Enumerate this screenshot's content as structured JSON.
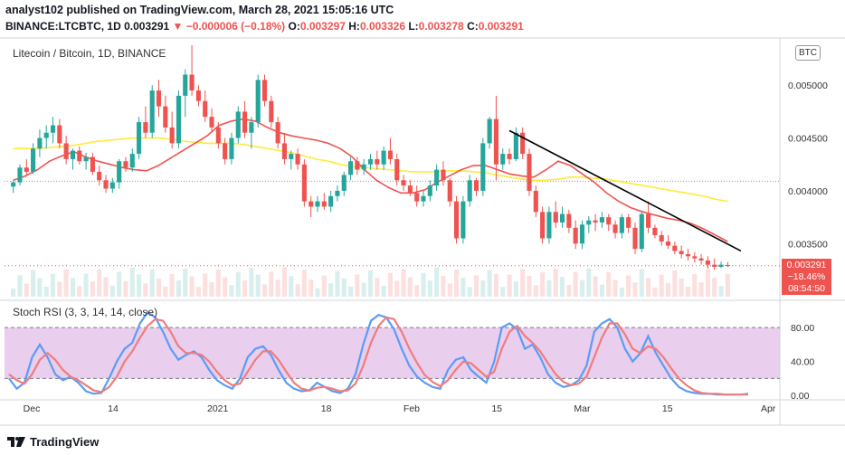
{
  "header": {
    "line1": "analyst102 published on TradingView.com, March 28, 2021 15:05:16 UTC",
    "symbol": "BINANCE:LTCBTC, 1D",
    "price": "0.003291",
    "change": "▼ −0.000006 (−0.18%)",
    "o_label": "O:",
    "o_value": "0.003297",
    "h_label": "H:",
    "h_value": "0.003326",
    "l_label": "L:",
    "l_value": "0.003278",
    "c_label": "C:",
    "c_value": "0.003291"
  },
  "main_pane": {
    "label": "Litecoin / Bitcoin, 1D, BINANCE",
    "currency_tag": "BTC",
    "price_tag": {
      "price": "0.003291",
      "pct": "−18.46%",
      "countdown": "08:54:50"
    }
  },
  "rsi_pane": {
    "label": "Stoch RSI (3, 3, 14, 14, close)"
  },
  "footer": {
    "brand": "TradingView"
  },
  "colors": {
    "up": "#26a69a",
    "down": "#ef5350",
    "ma_fast": "#ef5350",
    "ma_slow": "#ffeb3b",
    "trendline": "#000000",
    "stoch_k": "#5b9cf6",
    "stoch_d": "#ef7d7d",
    "rsi_band": "#e1bee7"
  },
  "icons": {
    "footer_logo": "tradingview-logo-icon"
  },
  "chart_data": [
    {
      "type": "candlestick",
      "title": "Litecoin / Bitcoin, 1D, BINANCE",
      "y_ticks": [
        "0.005000",
        "0.004500",
        "0.004000",
        "0.003500"
      ],
      "x_ticks": [
        "Dec",
        "14",
        "2021",
        "18",
        "Feb",
        "15",
        "Mar",
        "15",
        "Apr"
      ],
      "ylim": [
        0.00298,
        0.00543
      ],
      "last_price": 0.003291,
      "candles": [
        [
          0.00404,
          0.0041,
          0.00398,
          0.00408
        ],
        [
          0.00408,
          0.00425,
          0.00405,
          0.00422
        ],
        [
          0.00422,
          0.0043,
          0.00415,
          0.00418
        ],
        [
          0.00418,
          0.00445,
          0.00416,
          0.0044
        ],
        [
          0.0044,
          0.00458,
          0.00432,
          0.0045
        ],
        [
          0.0045,
          0.00462,
          0.0044,
          0.00455
        ],
        [
          0.00455,
          0.0047,
          0.00445,
          0.00462
        ],
        [
          0.00462,
          0.00468,
          0.0044,
          0.00445
        ],
        [
          0.00445,
          0.00452,
          0.00425,
          0.0043
        ],
        [
          0.0043,
          0.0044,
          0.0042,
          0.00438
        ],
        [
          0.00438,
          0.00442,
          0.00425,
          0.00428
        ],
        [
          0.00428,
          0.00436,
          0.0042,
          0.00432
        ],
        [
          0.00432,
          0.00436,
          0.00415,
          0.00418
        ],
        [
          0.00418,
          0.00424,
          0.00405,
          0.0041
        ],
        [
          0.0041,
          0.00415,
          0.00398,
          0.00402
        ],
        [
          0.00402,
          0.00412,
          0.00398,
          0.00408
        ],
        [
          0.00408,
          0.0043,
          0.00402,
          0.00428
        ],
        [
          0.00428,
          0.00432,
          0.00418,
          0.00422
        ],
        [
          0.00422,
          0.0044,
          0.00418,
          0.00435
        ],
        [
          0.00435,
          0.0047,
          0.0043,
          0.00465
        ],
        [
          0.00465,
          0.0048,
          0.0045,
          0.00455
        ],
        [
          0.00455,
          0.005,
          0.0045,
          0.00495
        ],
        [
          0.00495,
          0.00505,
          0.0047,
          0.0048
        ],
        [
          0.0048,
          0.0049,
          0.00455,
          0.0046
        ],
        [
          0.0046,
          0.00475,
          0.0044,
          0.00445
        ],
        [
          0.00445,
          0.00495,
          0.0044,
          0.0049
        ],
        [
          0.0049,
          0.00515,
          0.0047,
          0.0051
        ],
        [
          0.0051,
          0.00538,
          0.0049,
          0.00495
        ],
        [
          0.00495,
          0.005,
          0.0048,
          0.00485
        ],
        [
          0.00485,
          0.00495,
          0.00465,
          0.0047
        ],
        [
          0.0047,
          0.00478,
          0.00455,
          0.0046
        ],
        [
          0.0046,
          0.00465,
          0.0044,
          0.00445
        ],
        [
          0.00445,
          0.0045,
          0.00425,
          0.0043
        ],
        [
          0.0043,
          0.00455,
          0.00425,
          0.0045
        ],
        [
          0.0045,
          0.0048,
          0.00445,
          0.00475
        ],
        [
          0.00475,
          0.00485,
          0.0045,
          0.00455
        ],
        [
          0.00455,
          0.0047,
          0.0044,
          0.00465
        ],
        [
          0.00465,
          0.0051,
          0.0046,
          0.00505
        ],
        [
          0.00505,
          0.0051,
          0.0048,
          0.00485
        ],
        [
          0.00485,
          0.0049,
          0.0046,
          0.00465
        ],
        [
          0.00465,
          0.0047,
          0.0044,
          0.00445
        ],
        [
          0.00445,
          0.00455,
          0.00425,
          0.0043
        ],
        [
          0.0043,
          0.00438,
          0.0042,
          0.00435
        ],
        [
          0.00435,
          0.0044,
          0.0042,
          0.00425
        ],
        [
          0.00425,
          0.0043,
          0.00385,
          0.0039
        ],
        [
          0.0039,
          0.00395,
          0.00375,
          0.00385
        ],
        [
          0.00385,
          0.00395,
          0.0038,
          0.0039
        ],
        [
          0.0039,
          0.00398,
          0.00382,
          0.00385
        ],
        [
          0.00385,
          0.004,
          0.0038,
          0.00395
        ],
        [
          0.00395,
          0.00405,
          0.0039,
          0.004
        ],
        [
          0.004,
          0.00418,
          0.00395,
          0.00415
        ],
        [
          0.00415,
          0.00432,
          0.0041,
          0.00428
        ],
        [
          0.00428,
          0.00432,
          0.00415,
          0.0042
        ],
        [
          0.0042,
          0.0043,
          0.00415,
          0.00425
        ],
        [
          0.00425,
          0.00435,
          0.0042,
          0.0043
        ],
        [
          0.0043,
          0.00438,
          0.0042,
          0.00425
        ],
        [
          0.00425,
          0.00442,
          0.0042,
          0.00438
        ],
        [
          0.00438,
          0.0045,
          0.00425,
          0.0043
        ],
        [
          0.0043,
          0.00435,
          0.00405,
          0.0041
        ],
        [
          0.0041,
          0.00415,
          0.004,
          0.00405
        ],
        [
          0.00405,
          0.0041,
          0.00395,
          0.00398
        ],
        [
          0.00398,
          0.00405,
          0.00385,
          0.0039
        ],
        [
          0.0039,
          0.004,
          0.00385,
          0.00395
        ],
        [
          0.00395,
          0.0041,
          0.0039,
          0.00405
        ],
        [
          0.00405,
          0.00425,
          0.004,
          0.0042
        ],
        [
          0.0042,
          0.00428,
          0.00405,
          0.0041
        ],
        [
          0.0041,
          0.00412,
          0.00385,
          0.0039
        ],
        [
          0.0039,
          0.00395,
          0.0035,
          0.00355
        ],
        [
          0.00355,
          0.00395,
          0.0035,
          0.0039
        ],
        [
          0.0039,
          0.00415,
          0.00385,
          0.0041
        ],
        [
          0.0041,
          0.00412,
          0.00395,
          0.004
        ],
        [
          0.004,
          0.0045,
          0.00395,
          0.00445
        ],
        [
          0.00445,
          0.0047,
          0.0044,
          0.00468
        ],
        [
          0.00468,
          0.0049,
          0.0041,
          0.00425
        ],
        [
          0.00425,
          0.0044,
          0.0042,
          0.00435
        ],
        [
          0.00435,
          0.0044,
          0.00425,
          0.0043
        ],
        [
          0.0043,
          0.0046,
          0.00428,
          0.00455
        ],
        [
          0.00455,
          0.0046,
          0.0043,
          0.00435
        ],
        [
          0.00435,
          0.0044,
          0.00395,
          0.004
        ],
        [
          0.004,
          0.00405,
          0.00375,
          0.0038
        ],
        [
          0.0038,
          0.00385,
          0.0035,
          0.00355
        ],
        [
          0.00355,
          0.00385,
          0.0035,
          0.0038
        ],
        [
          0.0038,
          0.0039,
          0.00365,
          0.0037
        ],
        [
          0.0037,
          0.00385,
          0.00365,
          0.00378
        ],
        [
          0.00378,
          0.00382,
          0.0036,
          0.00365
        ],
        [
          0.00365,
          0.00372,
          0.00345,
          0.0035
        ],
        [
          0.0035,
          0.00372,
          0.00345,
          0.00368
        ],
        [
          0.00368,
          0.00376,
          0.0036,
          0.00372
        ],
        [
          0.00372,
          0.00378,
          0.00362,
          0.0037
        ],
        [
          0.0037,
          0.0038,
          0.00365,
          0.00375
        ],
        [
          0.00375,
          0.00378,
          0.00362,
          0.00368
        ],
        [
          0.00368,
          0.00372,
          0.00355,
          0.0036
        ],
        [
          0.0036,
          0.00378,
          0.00355,
          0.00375
        ],
        [
          0.00375,
          0.00378,
          0.0036,
          0.00365
        ],
        [
          0.00365,
          0.0037,
          0.0034,
          0.00345
        ],
        [
          0.00345,
          0.0038,
          0.00342,
          0.00378
        ],
        [
          0.00378,
          0.0039,
          0.0036,
          0.00365
        ],
        [
          0.00365,
          0.00368,
          0.00355,
          0.00358
        ],
        [
          0.00358,
          0.00362,
          0.00348,
          0.00352
        ],
        [
          0.00352,
          0.00358,
          0.00345,
          0.00348
        ],
        [
          0.00348,
          0.00352,
          0.0034,
          0.00343
        ],
        [
          0.00343,
          0.00348,
          0.00336,
          0.0034
        ],
        [
          0.0034,
          0.00345,
          0.00334,
          0.00338
        ],
        [
          0.00338,
          0.00342,
          0.00332,
          0.00336
        ],
        [
          0.00336,
          0.0034,
          0.0033,
          0.00334
        ],
        [
          0.00334,
          0.00338,
          0.00326,
          0.0033
        ],
        [
          0.0033,
          0.00336,
          0.00325,
          0.00328
        ],
        [
          0.00328,
          0.00333,
          0.00327,
          0.0033
        ],
        [
          0.003297,
          0.003326,
          0.003278,
          0.003291
        ]
      ],
      "moving_averages": [
        {
          "name": "fast",
          "color": "#ef5350",
          "values": [
            0.0041,
            0.00414,
            0.0042,
            0.00428,
            0.00433,
            0.00437,
            0.00432,
            0.00428,
            0.00425,
            0.00422,
            0.0042,
            0.00419,
            0.00424,
            0.00431,
            0.00438,
            0.00445,
            0.00452,
            0.00462,
            0.00466,
            0.00468,
            0.00466,
            0.0046,
            0.00455,
            0.00452,
            0.0045,
            0.00448,
            0.00445,
            0.0044,
            0.00432,
            0.0042,
            0.0041,
            0.00403,
            0.00398,
            0.00398,
            0.00401,
            0.00408,
            0.00414,
            0.0042,
            0.00424,
            0.00424,
            0.0042,
            0.00416,
            0.00414,
            0.00413,
            0.0042,
            0.00428,
            0.00424,
            0.00416,
            0.00408,
            0.00398,
            0.0039,
            0.00384,
            0.0038,
            0.00377,
            0.00374,
            0.00372,
            0.00369,
            0.00364,
            0.00358,
            0.00352
          ]
        }
      ],
      "moving_average_slow": {
        "color": "#ffeb3b",
        "values": [
          0.0044,
          0.0044,
          0.0044,
          0.00441,
          0.00442,
          0.00443,
          0.00445,
          0.00447,
          0.00448,
          0.00449,
          0.0045,
          0.0045,
          0.0045,
          0.00449,
          0.00447,
          0.00446,
          0.00445,
          0.00445,
          0.00445,
          0.00444,
          0.00442,
          0.0044,
          0.00438,
          0.00436,
          0.00433,
          0.0043,
          0.00428,
          0.00425,
          0.00423,
          0.00422,
          0.00421,
          0.0042,
          0.00419,
          0.00418,
          0.00418,
          0.00418,
          0.00419,
          0.00419,
          0.00418,
          0.00417,
          0.00415,
          0.00413,
          0.00411,
          0.0041,
          0.0041,
          0.00411,
          0.00413,
          0.00413,
          0.00412,
          0.00411,
          0.00409,
          0.00407,
          0.00405,
          0.00403,
          0.00401,
          0.00399,
          0.00397,
          0.00395,
          0.00392,
          0.0039
        ]
      },
      "trendline": {
        "from_price": 0.00457,
        "to_price": 0.00343
      },
      "dotted_reference_price": 0.00409
    },
    {
      "type": "line",
      "title": "Stoch RSI (3, 3, 14, 14, close)",
      "y_ticks": [
        "80.00",
        "40.00",
        "0.00"
      ],
      "band": [
        20,
        80
      ],
      "ylim": [
        -3,
        110
      ],
      "series": [
        {
          "name": "K",
          "color": "#5b9cf6",
          "values": [
            20,
            8,
            15,
            45,
            60,
            45,
            25,
            18,
            22,
            15,
            5,
            2,
            3,
            20,
            40,
            55,
            62,
            85,
            98,
            92,
            75,
            55,
            42,
            48,
            52,
            45,
            30,
            18,
            12,
            8,
            20,
            45,
            55,
            58,
            48,
            30,
            15,
            8,
            5,
            6,
            15,
            10,
            5,
            3,
            8,
            25,
            60,
            88,
            95,
            92,
            78,
            55,
            35,
            22,
            15,
            10,
            8,
            30,
            42,
            45,
            30,
            22,
            15,
            40,
            80,
            85,
            78,
            55,
            60,
            45,
            25,
            15,
            10,
            12,
            18,
            35,
            75,
            85,
            90,
            80,
            55,
            40,
            50,
            70,
            50,
            35,
            20,
            10,
            5,
            3,
            2,
            2,
            1,
            1,
            1,
            1,
            2
          ]
        },
        {
          "name": "D",
          "color": "#ef7d7d",
          "values": [
            25,
            18,
            14,
            25,
            42,
            50,
            42,
            30,
            22,
            18,
            12,
            6,
            4,
            10,
            22,
            40,
            52,
            68,
            82,
            90,
            88,
            75,
            58,
            50,
            50,
            48,
            40,
            28,
            18,
            12,
            14,
            28,
            42,
            52,
            52,
            42,
            28,
            15,
            8,
            6,
            9,
            10,
            8,
            5,
            6,
            14,
            35,
            62,
            82,
            92,
            90,
            75,
            55,
            38,
            24,
            16,
            11,
            18,
            30,
            40,
            38,
            30,
            22,
            28,
            55,
            75,
            82,
            70,
            62,
            52,
            38,
            25,
            16,
            12,
            14,
            22,
            45,
            68,
            85,
            85,
            72,
            55,
            50,
            58,
            55,
            45,
            32,
            20,
            12,
            6,
            3,
            2,
            2,
            1,
            1,
            1,
            1
          ]
        }
      ]
    }
  ]
}
